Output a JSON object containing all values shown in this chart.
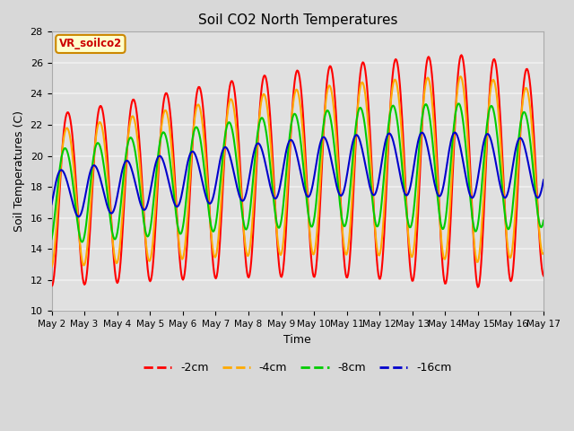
{
  "title": "Soil CO2 North Temperatures",
  "xlabel": "Time",
  "ylabel": "Soil Temperatures (C)",
  "ylim": [
    10,
    28
  ],
  "xlim": [
    0,
    15
  ],
  "x_tick_labels": [
    "May 2",
    "May 3",
    "May 4",
    "May 5",
    "May 6",
    "May 7",
    "May 8",
    "May 9",
    "May 10",
    "May 11",
    "May 12",
    "May 13",
    "May 14",
    "May 15",
    "May 16",
    "May 17"
  ],
  "x_tick_positions": [
    0,
    1,
    2,
    3,
    4,
    5,
    6,
    7,
    8,
    9,
    10,
    11,
    12,
    13,
    14,
    15
  ],
  "y_ticks": [
    10,
    12,
    14,
    16,
    18,
    20,
    22,
    24,
    26,
    28
  ],
  "fig_bg_color": "#d8d8d8",
  "plot_bg_color": "#e0e0e0",
  "grid_color": "#f0f0f0",
  "legend_label_box": "VR_soilco2",
  "legend_box_bg": "#ffffcc",
  "legend_box_edge": "#cc8800",
  "series": {
    "2cm": {
      "color": "#ff0000",
      "label": "-2cm",
      "linewidth": 1.5
    },
    "4cm": {
      "color": "#ffaa00",
      "label": "-4cm",
      "linewidth": 1.5
    },
    "8cm": {
      "color": "#00cc00",
      "label": "-8cm",
      "linewidth": 1.5
    },
    "16cm": {
      "color": "#0000cc",
      "label": "-16cm",
      "linewidth": 1.5
    }
  },
  "num_points": 600
}
